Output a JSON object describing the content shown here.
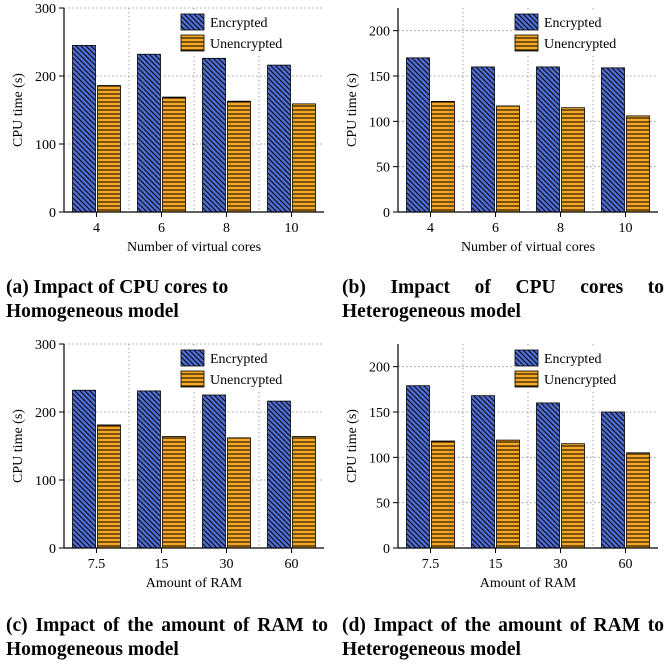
{
  "colors": {
    "encrypted": "#4f6fd6",
    "unencrypted": "#f5a623"
  },
  "chart_data": [
    {
      "id": "a",
      "type": "bar",
      "ylabel": "CPU time (s)",
      "xlabel": "Number of virtual cores",
      "categories": [
        "4",
        "6",
        "8",
        "10"
      ],
      "ylim": [
        0,
        300
      ],
      "yticks": [
        0,
        100,
        200,
        300
      ],
      "grid": true,
      "legend": "top-right",
      "series": [
        {
          "name": "Encrypted",
          "values": [
            245,
            232,
            226,
            216
          ]
        },
        {
          "name": "Unencrypted",
          "values": [
            186,
            169,
            163,
            159
          ]
        }
      ]
    },
    {
      "id": "b",
      "type": "bar",
      "ylabel": "CPU time (s)",
      "xlabel": "Number of virtual cores",
      "categories": [
        "4",
        "6",
        "8",
        "10"
      ],
      "ylim": [
        0,
        225
      ],
      "yticks": [
        0,
        50,
        100,
        150,
        200
      ],
      "grid": true,
      "legend": "top-right",
      "series": [
        {
          "name": "Encrypted",
          "values": [
            170,
            160,
            160,
            159
          ]
        },
        {
          "name": "Unencrypted",
          "values": [
            122,
            117,
            115,
            106
          ]
        }
      ]
    },
    {
      "id": "c",
      "type": "bar",
      "ylabel": "CPU time (s)",
      "xlabel": "Amount of RAM",
      "categories": [
        "7.5",
        "15",
        "30",
        "60"
      ],
      "ylim": [
        0,
        300
      ],
      "yticks": [
        0,
        100,
        200,
        300
      ],
      "grid": true,
      "legend": "top-right",
      "series": [
        {
          "name": "Encrypted",
          "values": [
            232,
            231,
            225,
            216
          ]
        },
        {
          "name": "Unencrypted",
          "values": [
            181,
            164,
            162,
            164
          ]
        }
      ]
    },
    {
      "id": "d",
      "type": "bar",
      "ylabel": "CPU time (s)",
      "xlabel": "Amount of RAM",
      "categories": [
        "7.5",
        "15",
        "30",
        "60"
      ],
      "ylim": [
        0,
        225
      ],
      "yticks": [
        0,
        50,
        100,
        150,
        200
      ],
      "grid": true,
      "legend": "top-right",
      "series": [
        {
          "name": "Encrypted",
          "values": [
            179,
            168,
            160,
            150
          ]
        },
        {
          "name": "Unencrypted",
          "values": [
            118,
            119,
            115,
            105
          ]
        }
      ]
    }
  ],
  "captions": {
    "a": {
      "label": "(a)",
      "text": "Impact of CPU cores to Homogeneous model"
    },
    "b": {
      "label": "(b)",
      "text": "Impact of CPU cores to Heterogeneous model"
    },
    "c": {
      "label": "(c)",
      "text": "Impact of the amount of RAM to Homogeneous model"
    },
    "d": {
      "label": "(d)",
      "text": "Impact of the amount of RAM to Heterogeneous model"
    }
  }
}
